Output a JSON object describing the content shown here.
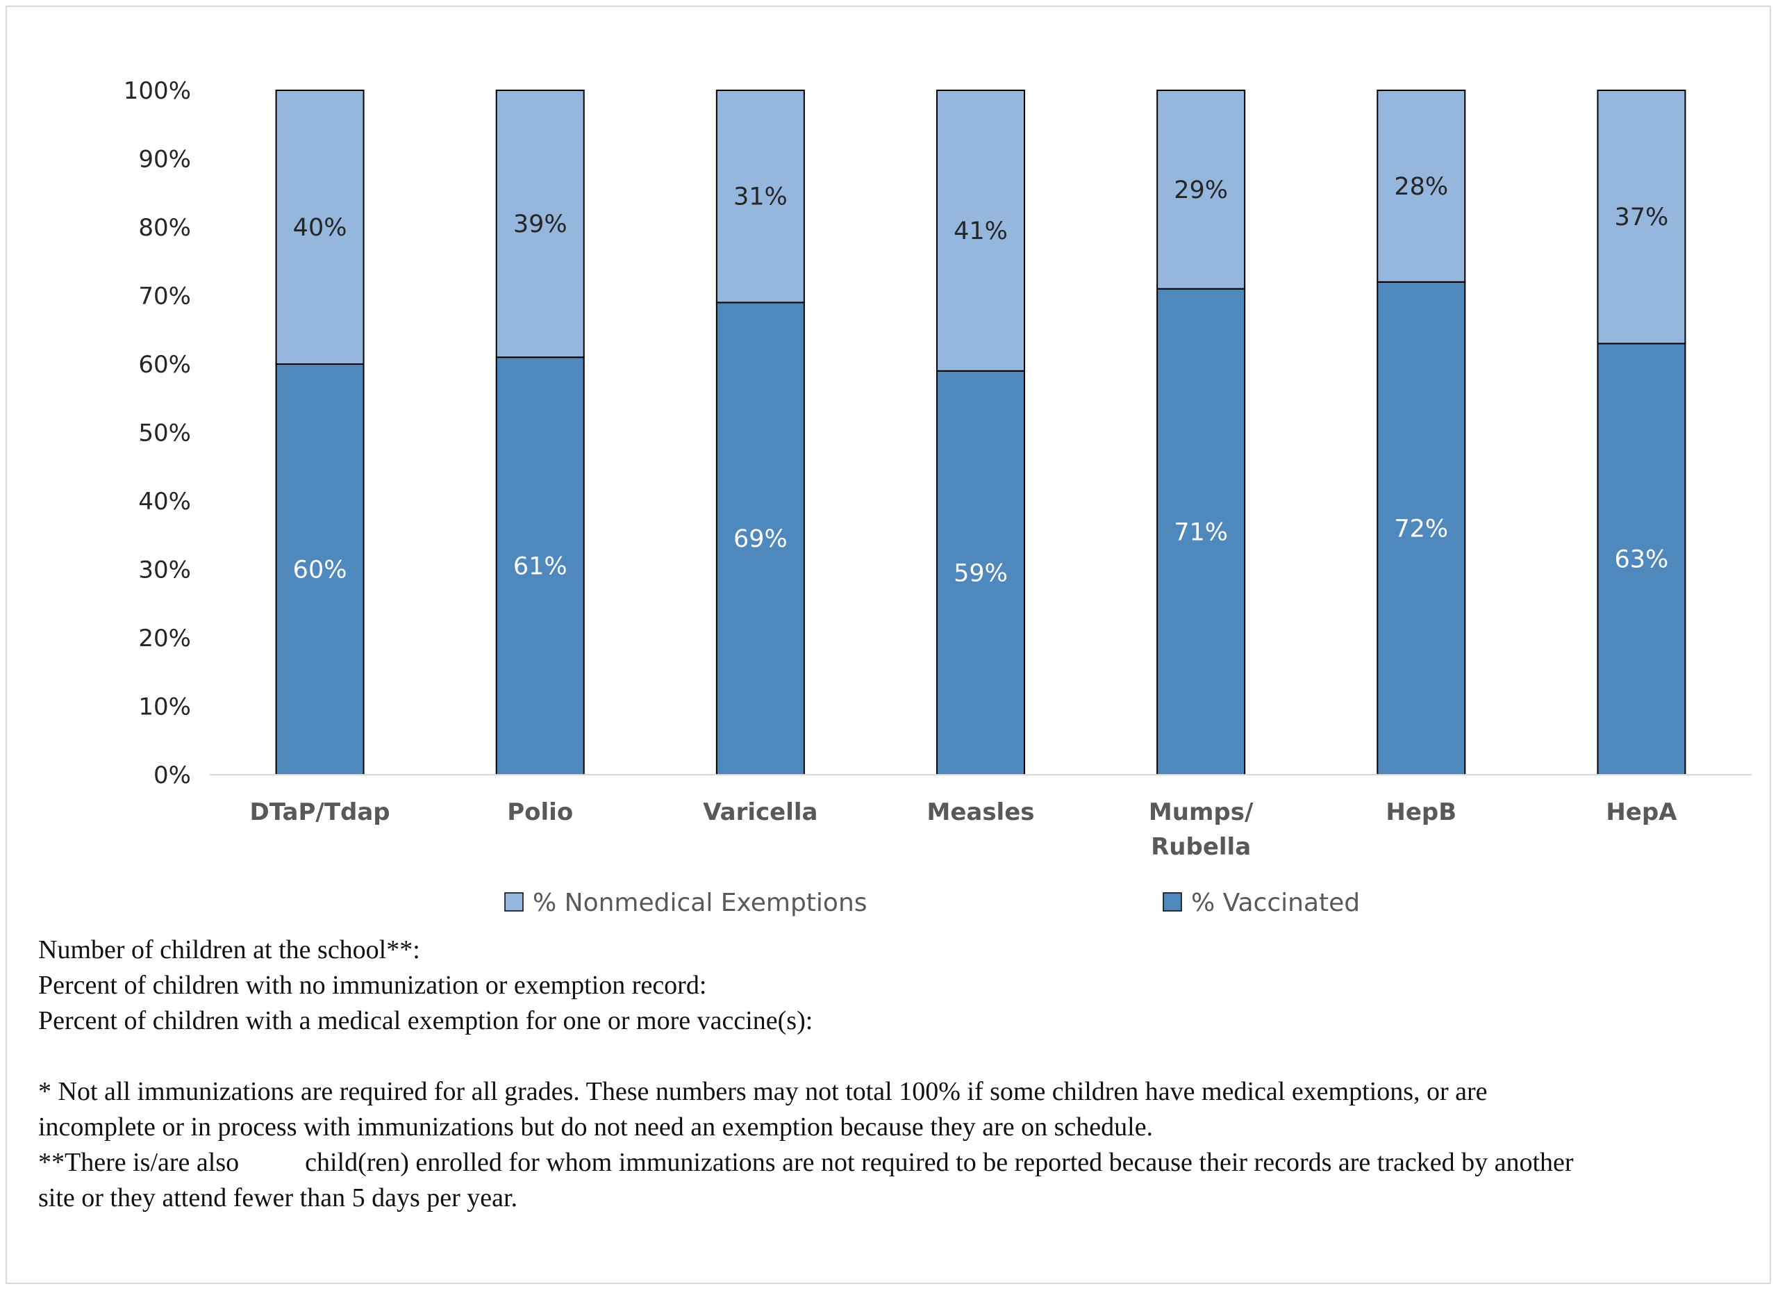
{
  "chart_data": {
    "type": "bar",
    "stacked": true,
    "normalized": true,
    "categories": [
      "DTaP/Tdap",
      "Polio",
      "Varicella",
      "Measles",
      "Mumps/\nRubella",
      "HepB",
      "HepA"
    ],
    "series": [
      {
        "name": "% Vaccinated",
        "values": [
          60,
          61,
          69,
          59,
          71,
          72,
          63
        ],
        "labels": [
          "60%",
          "61%",
          "69%",
          "59%",
          "71%",
          "72%",
          "63%"
        ],
        "color": "#4f88bd",
        "label_color": "#ffffff"
      },
      {
        "name": "% Nonmedical Exemptions",
        "values": [
          40,
          39,
          31,
          41,
          29,
          28,
          37
        ],
        "labels": [
          "40%",
          "39%",
          "31%",
          "41%",
          "29%",
          "28%",
          "37%"
        ],
        "color": "#95b7de",
        "label_color": "#262626"
      }
    ],
    "ylim": [
      0,
      100
    ],
    "yticks": [
      0,
      10,
      20,
      30,
      40,
      50,
      60,
      70,
      80,
      90,
      100
    ],
    "ytick_labels": [
      "0%",
      "10%",
      "20%",
      "30%",
      "40%",
      "50%",
      "60%",
      "70%",
      "80%",
      "90%",
      "100%"
    ],
    "legend_order": [
      "% Nonmedical Exemptions",
      "% Vaccinated"
    ],
    "legend_position": "bottom",
    "grid": false
  },
  "notes": {
    "line1": "Number of children at the school**:",
    "line2": "Percent of children with no immunization or exemption record:",
    "line3": "Percent of children with a medical exemption for one or more vaccine(s):",
    "footnote1_a": "* Not all immunizations are required for all grades. These numbers may not total 100% if some children have medical exemptions, or are",
    "footnote1_b": "incomplete or in process with immunizations but do not need an exemption because they are on schedule.",
    "footnote2_a_start": "**There is/are also",
    "footnote2_a_end": "child(ren) enrolled for whom immunizations are not required to be reported because their records are tracked by another",
    "footnote2_b": "site or they attend fewer than 5 days per year."
  }
}
